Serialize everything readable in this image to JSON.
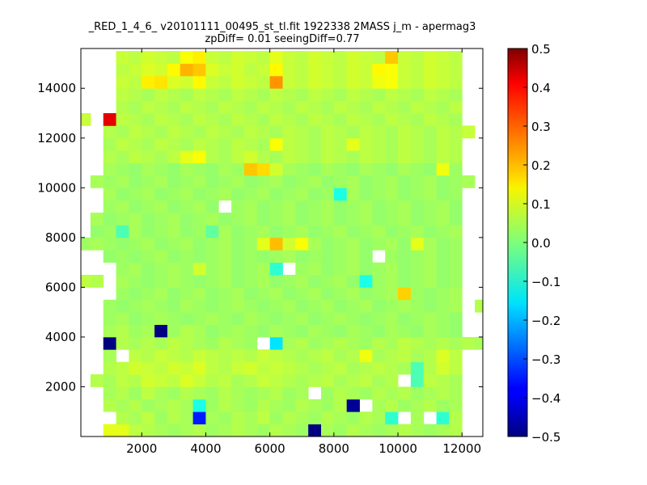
{
  "chart_data": {
    "type": "heatmap",
    "title": "_RED_1_4_6_ v20101111_00495_st_tl.fit 1922338 2MASS j_m - apermag3",
    "subtitle": "zpDiff= 0.01 seeingDiff=0.77",
    "xlabel": "",
    "ylabel": "",
    "xlim": [
      100,
      12650
    ],
    "ylim": [
      0,
      15600
    ],
    "x_ticks": [
      2000,
      4000,
      6000,
      8000,
      10000,
      12000
    ],
    "y_ticks": [
      2000,
      4000,
      6000,
      8000,
      10000,
      12000,
      14000
    ],
    "x_tick_labels": [
      "2000",
      "4000",
      "6000",
      "8000",
      "10000",
      "12000"
    ],
    "y_tick_labels": [
      "2000",
      "4000",
      "6000",
      "8000",
      "10000",
      "12000",
      "14000"
    ],
    "grid": false,
    "colorscale": "jet",
    "zlim": [
      -0.5,
      0.5
    ],
    "colorbar_ticks": [
      0.5,
      0.4,
      0.3,
      0.2,
      0.1,
      0.0,
      -0.1,
      -0.2,
      -0.3,
      -0.4,
      -0.5
    ],
    "colorbar_tick_labels": [
      "0.5",
      "0.4",
      "0.3",
      "0.2",
      "0.1",
      "0.0",
      "−0.1",
      "−0.2",
      "−0.3",
      "−0.4",
      "−0.5"
    ],
    "cell_size": [
      400,
      500
    ],
    "x_centers": [
      200,
      600,
      1000,
      1400,
      1800,
      2200,
      2600,
      3000,
      3400,
      3800,
      4200,
      4600,
      5000,
      5400,
      5800,
      6200,
      6600,
      7000,
      7400,
      7800,
      8200,
      8600,
      9000,
      9400,
      9800,
      10200,
      10600,
      11000,
      11400,
      11800,
      12200,
      12600
    ],
    "y_centers": [
      250,
      750,
      1250,
      1750,
      2250,
      2750,
      3250,
      3750,
      4250,
      4750,
      5250,
      5750,
      6250,
      6750,
      7250,
      7750,
      8250,
      8750,
      9250,
      9750,
      10250,
      10750,
      11250,
      11750,
      12250,
      12750,
      13250,
      13750,
      14250,
      14750,
      15250
    ],
    "values": [
      [
        null,
        null,
        0.1,
        0.1,
        0.06,
        0.05,
        0.04,
        0.03,
        0.04,
        0.05,
        0.03,
        0.04,
        0.05,
        0.04,
        0.03,
        0.05,
        0.04,
        0.03,
        -0.5,
        0.04,
        0.03,
        0.05,
        0.04,
        0.03,
        0.04,
        0.05,
        0.04,
        0.03,
        0.04,
        0.05,
        null,
        null
      ],
      [
        null,
        null,
        null,
        0.05,
        0.04,
        0.06,
        0.03,
        0.05,
        0.04,
        -0.35,
        0.04,
        0.03,
        0.05,
        0.04,
        0.06,
        0.03,
        0.05,
        0.04,
        0.03,
        0.05,
        0.04,
        0.03,
        0.05,
        0.04,
        -0.08,
        null,
        0.04,
        null,
        -0.08,
        0.05,
        null,
        null
      ],
      [
        null,
        null,
        0.05,
        0.04,
        0.05,
        0.03,
        0.04,
        0.05,
        0.04,
        -0.1,
        0.03,
        0.05,
        0.04,
        0.03,
        0.05,
        0.04,
        0.03,
        0.05,
        0.04,
        0.03,
        0.05,
        -0.48,
        null,
        0.04,
        0.05,
        0.03,
        0.04,
        0.05,
        0.03,
        0.04,
        null,
        null
      ],
      [
        null,
        null,
        0.04,
        0.05,
        0.03,
        0.06,
        0.04,
        0.03,
        0.05,
        0.04,
        0.03,
        0.05,
        0.04,
        0.03,
        0.04,
        0.05,
        0.03,
        0.04,
        null,
        0.03,
        0.05,
        0.04,
        0.03,
        0.05,
        0.04,
        0.05,
        0.03,
        0.04,
        0.05,
        0.04,
        null,
        null
      ],
      [
        null,
        0.05,
        0.04,
        0.06,
        0.05,
        0.08,
        0.07,
        0.06,
        0.09,
        0.07,
        0.05,
        0.06,
        0.04,
        0.05,
        0.07,
        0.06,
        0.05,
        0.04,
        0.05,
        0.06,
        0.04,
        0.05,
        0.06,
        0.04,
        0.05,
        null,
        -0.05,
        0.06,
        0.05,
        0.04,
        null,
        null
      ],
      [
        null,
        null,
        0.05,
        0.06,
        0.08,
        0.07,
        0.06,
        0.08,
        0.07,
        0.09,
        0.06,
        0.05,
        0.07,
        0.08,
        0.06,
        0.07,
        0.06,
        0.05,
        0.04,
        0.05,
        0.06,
        0.04,
        0.05,
        0.06,
        0.05,
        0.04,
        -0.05,
        0.05,
        0.08,
        0.06,
        null,
        null
      ],
      [
        null,
        null,
        0.04,
        null,
        0.06,
        0.05,
        0.07,
        0.06,
        0.05,
        0.07,
        0.06,
        0.05,
        0.06,
        0.05,
        0.07,
        0.06,
        0.05,
        0.04,
        0.05,
        0.06,
        0.04,
        0.05,
        0.11,
        0.04,
        0.05,
        0.06,
        0.04,
        0.05,
        0.09,
        0.06,
        null,
        null
      ],
      [
        null,
        null,
        -0.5,
        0.05,
        0.04,
        0.05,
        0.04,
        0.06,
        0.05,
        0.04,
        0.03,
        0.05,
        0.04,
        0.03,
        null,
        -0.15,
        0.04,
        0.05,
        0.03,
        0.04,
        0.05,
        0.04,
        0.03,
        0.05,
        0.04,
        0.06,
        0.05,
        0.04,
        0.05,
        0.04,
        0.05,
        0.04
      ],
      [
        null,
        null,
        0.04,
        0.05,
        0.03,
        0.04,
        -0.5,
        0.03,
        0.05,
        0.04,
        0.02,
        0.03,
        0.04,
        0.03,
        0.02,
        0.04,
        0.03,
        0.02,
        0.04,
        0.03,
        0.02,
        0.04,
        0.03,
        0.02,
        0.04,
        0.03,
        0.02,
        0.04,
        0.03,
        0.02,
        null,
        null
      ],
      [
        null,
        null,
        0.03,
        0.04,
        0.02,
        0.03,
        0.04,
        0.03,
        0.02,
        0.03,
        0.04,
        0.03,
        0.02,
        0.04,
        0.03,
        0.02,
        0.03,
        0.04,
        0.02,
        0.03,
        0.04,
        0.03,
        0.02,
        0.03,
        0.04,
        0.02,
        0.03,
        0.04,
        0.03,
        0.02,
        null,
        null
      ],
      [
        null,
        null,
        0.03,
        0.02,
        0.03,
        0.04,
        0.03,
        0.02,
        0.04,
        0.03,
        0.02,
        0.03,
        0.04,
        0.03,
        0.02,
        0.03,
        0.04,
        0.02,
        0.03,
        0.04,
        0.02,
        0.03,
        0.04,
        0.02,
        0.03,
        0.04,
        0.03,
        0.02,
        0.03,
        0.04,
        null,
        0.05
      ],
      [
        null,
        null,
        null,
        0.03,
        0.02,
        0.03,
        0.04,
        0.02,
        0.03,
        0.04,
        0.02,
        0.03,
        0.04,
        0.02,
        0.03,
        0.04,
        0.02,
        0.03,
        0.04,
        0.02,
        0.03,
        0.04,
        0.02,
        0.03,
        0.04,
        0.17,
        0.03,
        0.02,
        0.03,
        0.04,
        null,
        null
      ],
      [
        0.06,
        0.05,
        null,
        0.04,
        0.03,
        0.02,
        0.03,
        0.04,
        0.03,
        0.02,
        0.03,
        0.04,
        0.02,
        0.03,
        0.04,
        0.02,
        0.03,
        0.04,
        0.02,
        0.03,
        0.04,
        0.02,
        -0.1,
        0.03,
        0.04,
        0.02,
        0.03,
        0.04,
        0.02,
        0.03,
        null,
        null
      ],
      [
        null,
        null,
        null,
        0.03,
        0.04,
        0.02,
        0.03,
        0.04,
        0.03,
        0.08,
        0.03,
        0.04,
        0.02,
        0.03,
        0.04,
        -0.08,
        null,
        0.03,
        0.04,
        0.02,
        0.03,
        0.04,
        0.02,
        0.03,
        0.04,
        0.02,
        0.03,
        0.04,
        0.02,
        0.03,
        null,
        null
      ],
      [
        null,
        null,
        0.02,
        0.03,
        0.02,
        0.03,
        0.04,
        0.02,
        0.03,
        0.02,
        0.03,
        0.04,
        0.02,
        0.03,
        0.02,
        0.03,
        0.04,
        0.02,
        0.03,
        0.02,
        0.03,
        0.04,
        0.02,
        null,
        0.03,
        0.02,
        0.03,
        0.04,
        0.02,
        0.03,
        null,
        null
      ],
      [
        0.03,
        0.04,
        0.03,
        0.02,
        0.03,
        0.04,
        0.02,
        0.03,
        0.04,
        0.02,
        0.03,
        0.04,
        0.02,
        0.03,
        0.1,
        0.19,
        0.08,
        0.12,
        0.04,
        0.02,
        0.03,
        0.04,
        0.02,
        0.03,
        0.04,
        0.02,
        0.1,
        0.04,
        0.02,
        0.03,
        null,
        null
      ],
      [
        null,
        0.02,
        0.03,
        -0.05,
        0.04,
        0.02,
        0.03,
        0.04,
        0.02,
        0.03,
        -0.03,
        0.04,
        0.02,
        0.03,
        0.04,
        0.02,
        0.03,
        0.04,
        0.02,
        0.03,
        0.04,
        0.02,
        0.03,
        0.04,
        0.02,
        0.03,
        0.04,
        0.02,
        0.03,
        0.04,
        null,
        null
      ],
      [
        null,
        0.04,
        0.02,
        0.03,
        0.04,
        0.02,
        0.03,
        0.04,
        0.02,
        0.03,
        0.04,
        0.02,
        0.03,
        0.04,
        0.02,
        0.03,
        0.04,
        0.02,
        0.03,
        0.04,
        0.02,
        0.03,
        0.04,
        0.02,
        0.03,
        0.04,
        0.02,
        0.03,
        0.04,
        0.02,
        null,
        null
      ],
      [
        null,
        null,
        0.03,
        0.04,
        0.02,
        0.03,
        0.04,
        0.02,
        0.03,
        0.04,
        0.02,
        null,
        0.03,
        0.04,
        0.02,
        0.03,
        0.04,
        0.02,
        0.03,
        0.04,
        0.02,
        0.03,
        0.04,
        0.02,
        0.03,
        0.04,
        0.02,
        0.03,
        0.04,
        0.02,
        null,
        null
      ],
      [
        null,
        null,
        0.04,
        0.02,
        0.03,
        0.04,
        0.02,
        0.03,
        0.04,
        0.02,
        0.03,
        0.04,
        0.02,
        0.03,
        0.04,
        0.02,
        0.03,
        0.04,
        0.02,
        0.03,
        -0.1,
        0.04,
        0.02,
        0.03,
        0.04,
        0.02,
        0.03,
        0.04,
        0.02,
        0.03,
        null,
        null
      ],
      [
        null,
        0.04,
        0.03,
        0.04,
        0.02,
        0.03,
        0.04,
        0.02,
        0.03,
        0.04,
        0.02,
        0.03,
        0.04,
        0.02,
        0.03,
        0.04,
        0.02,
        0.03,
        0.04,
        0.02,
        0.03,
        0.04,
        0.02,
        0.03,
        0.04,
        0.02,
        0.03,
        0.04,
        0.02,
        0.03,
        0.04,
        null
      ],
      [
        null,
        null,
        0.04,
        0.03,
        0.02,
        0.04,
        0.03,
        0.02,
        0.04,
        0.03,
        0.02,
        0.04,
        0.03,
        0.18,
        0.16,
        0.08,
        0.04,
        0.03,
        0.02,
        0.04,
        0.03,
        0.02,
        0.04,
        0.03,
        0.02,
        0.04,
        0.03,
        0.02,
        0.11,
        0.03,
        null,
        null
      ],
      [
        null,
        null,
        0.05,
        0.04,
        0.06,
        0.05,
        0.04,
        0.06,
        0.1,
        0.12,
        0.05,
        0.04,
        0.06,
        0.08,
        0.05,
        0.04,
        0.06,
        0.05,
        0.04,
        0.06,
        0.05,
        0.04,
        0.06,
        0.05,
        0.04,
        0.06,
        0.05,
        0.04,
        0.06,
        0.05,
        null,
        null
      ],
      [
        null,
        null,
        0.04,
        0.06,
        0.05,
        0.04,
        0.06,
        0.05,
        0.04,
        0.06,
        0.05,
        0.04,
        0.06,
        0.05,
        0.04,
        0.12,
        0.06,
        0.05,
        0.04,
        0.06,
        0.05,
        0.1,
        0.06,
        0.05,
        0.04,
        0.06,
        0.05,
        0.04,
        0.06,
        0.05,
        null,
        null
      ],
      [
        null,
        null,
        0.05,
        0.04,
        0.06,
        0.05,
        0.04,
        0.06,
        0.05,
        0.04,
        0.06,
        0.05,
        0.04,
        0.06,
        0.05,
        0.04,
        0.06,
        0.05,
        0.04,
        0.06,
        0.05,
        0.04,
        0.06,
        0.05,
        0.04,
        0.06,
        0.05,
        0.04,
        0.06,
        0.05,
        0.07,
        null
      ],
      [
        0.07,
        null,
        0.4,
        0.06,
        0.05,
        0.04,
        0.06,
        0.05,
        0.04,
        0.06,
        0.05,
        0.04,
        0.06,
        0.05,
        0.04,
        0.06,
        0.05,
        0.04,
        0.06,
        0.05,
        0.04,
        0.06,
        0.05,
        0.04,
        0.06,
        0.05,
        0.04,
        0.06,
        0.05,
        0.04,
        null,
        null
      ],
      [
        null,
        null,
        null,
        0.05,
        0.04,
        0.06,
        0.05,
        0.04,
        0.06,
        0.05,
        0.04,
        0.06,
        0.05,
        0.04,
        0.06,
        0.05,
        0.04,
        0.06,
        0.05,
        0.04,
        0.06,
        0.05,
        0.04,
        0.06,
        0.05,
        0.04,
        0.06,
        0.05,
        0.04,
        0.06,
        null,
        null
      ],
      [
        null,
        null,
        null,
        0.06,
        0.05,
        0.04,
        0.06,
        0.05,
        0.04,
        0.06,
        0.05,
        0.04,
        0.06,
        0.05,
        0.04,
        0.06,
        0.05,
        0.04,
        0.06,
        0.05,
        0.04,
        0.06,
        0.05,
        0.04,
        0.06,
        0.05,
        0.04,
        0.06,
        0.05,
        0.04,
        null,
        null
      ],
      [
        null,
        null,
        null,
        0.07,
        0.06,
        0.14,
        0.15,
        0.09,
        0.08,
        0.13,
        0.07,
        0.06,
        0.08,
        0.07,
        0.06,
        0.23,
        0.07,
        0.06,
        0.08,
        0.07,
        0.06,
        0.08,
        0.07,
        0.11,
        0.12,
        0.07,
        0.06,
        0.08,
        0.07,
        0.06,
        null,
        null
      ],
      [
        null,
        null,
        null,
        0.06,
        0.07,
        0.09,
        0.08,
        0.13,
        0.2,
        0.18,
        0.09,
        0.07,
        0.08,
        0.06,
        0.07,
        0.13,
        0.07,
        0.06,
        0.08,
        0.07,
        0.06,
        0.08,
        0.07,
        0.13,
        0.12,
        0.07,
        0.06,
        0.08,
        0.07,
        0.06,
        null,
        null
      ],
      [
        null,
        null,
        null,
        0.07,
        0.06,
        0.08,
        0.07,
        0.06,
        0.12,
        0.14,
        0.07,
        0.06,
        0.08,
        0.07,
        0.06,
        0.1,
        0.07,
        0.06,
        0.08,
        0.07,
        0.06,
        0.08,
        0.07,
        0.06,
        0.18,
        0.07,
        0.06,
        0.08,
        0.07,
        0.06,
        null,
        null
      ]
    ]
  }
}
